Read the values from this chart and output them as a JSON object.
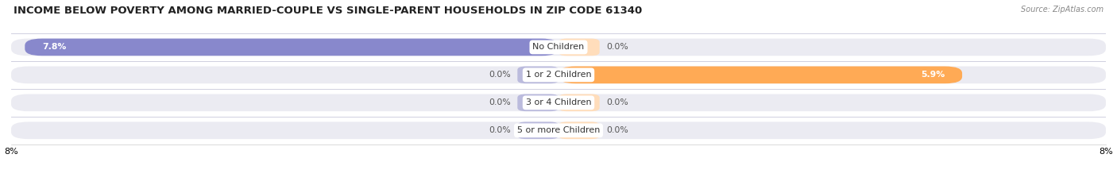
{
  "title": "INCOME BELOW POVERTY AMONG MARRIED-COUPLE VS SINGLE-PARENT HOUSEHOLDS IN ZIP CODE 61340",
  "source": "Source: ZipAtlas.com",
  "categories": [
    "No Children",
    "1 or 2 Children",
    "3 or 4 Children",
    "5 or more Children"
  ],
  "married_values": [
    7.8,
    0.0,
    0.0,
    0.0
  ],
  "single_values": [
    0.0,
    5.9,
    0.0,
    0.0
  ],
  "married_color": "#8888cc",
  "single_color": "#ffaa55",
  "married_color_light": "#bbbbdd",
  "single_color_light": "#ffddbb",
  "bar_bg_color": "#ebebf2",
  "row_separator_color": "#d0d0e0",
  "xlim": 8.0,
  "bar_height": 0.62,
  "fig_width": 14.06,
  "fig_height": 2.33,
  "title_fontsize": 9.5,
  "label_fontsize": 7.8,
  "axis_label_fontsize": 8.0,
  "category_fontsize": 8.0
}
